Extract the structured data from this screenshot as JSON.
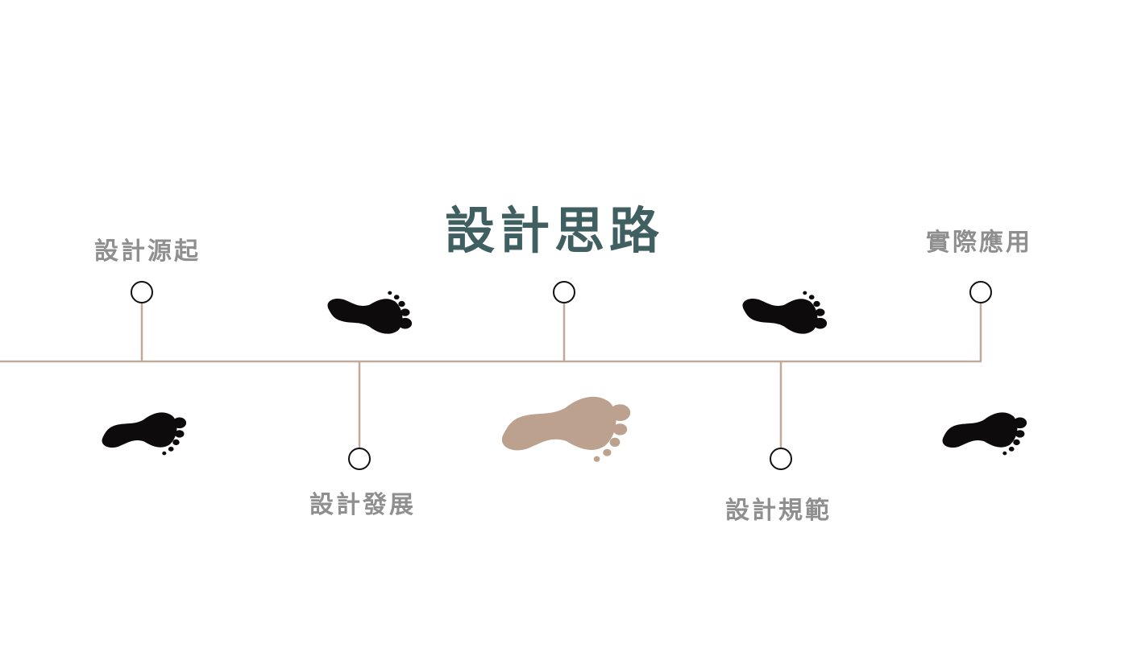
{
  "title": "設計思路",
  "stages": {
    "origin": "設計源起",
    "development": "設計發展",
    "specification": "設計規範",
    "application": "實際應用"
  },
  "colors": {
    "title": "#3f5f60",
    "label": "#8f8f8f",
    "timeline": "#c2aa9a",
    "footprint_dark": "#0d0b0b",
    "footprint_accent": "#bca28e"
  },
  "icons": [
    "footprint-icon"
  ]
}
